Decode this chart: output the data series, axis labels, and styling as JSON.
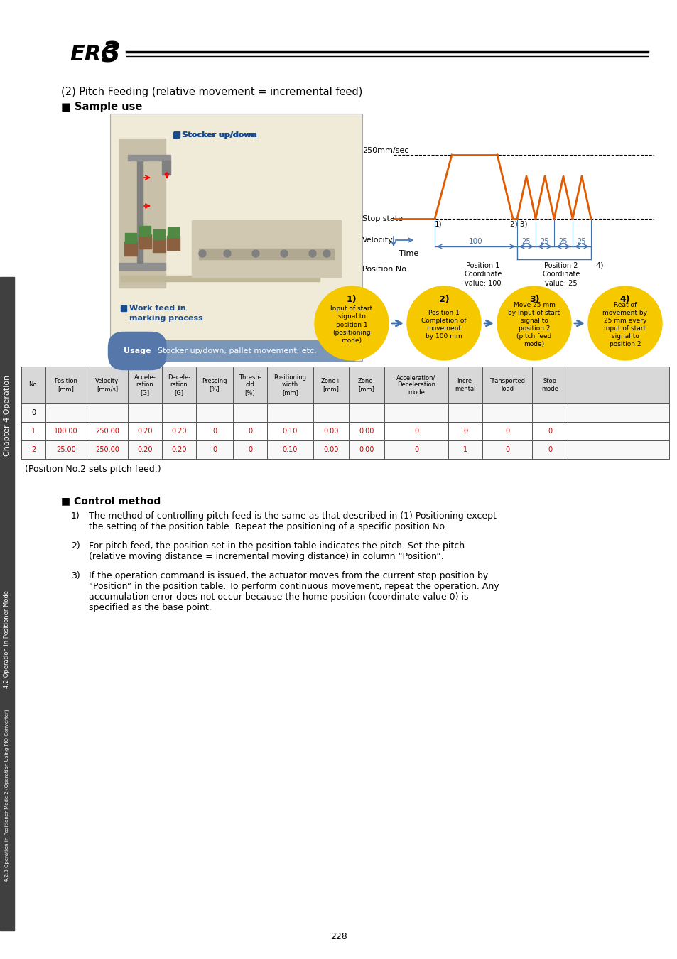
{
  "title_text": "(2) Pitch Feeding (relative movement = incremental feed)",
  "sample_use": "■ Sample use",
  "control_method": "■ Control method",
  "page_number": "228",
  "chapter_text": "Chapter 4 Operation",
  "sidebar_text1": "4.2 Operation in Positioner Mode",
  "sidebar_text2": "4.2.3 Operation in Positioner Mode 2 (Operation Using PIO Converter)",
  "usage_text": "Stocker up/down, pallet movement, etc.",
  "stocker_label": "■ Stocker up/down",
  "work_feed_label": "■ Work feed in\nmarking process",
  "velocity_label": "250mm/sec",
  "stop_state_label": "Stop state",
  "velocity_axis_label": "Velocity",
  "time_axis_label": "Time",
  "position_no_label": "Position No.",
  "pos1_coord": "Position 1\nCoordinate\nvalue: 100",
  "pos2_coord": "Position 2\nCoordinate\nvalue: 25",
  "circle_labels": [
    {
      "num": "1)",
      "text": "Input of start\nsignal to\nposition 1\n(positioning\nmode)"
    },
    {
      "num": "2)",
      "text": "Position 1\nCompletion of\nmovement\nby 100 mm"
    },
    {
      "num": "3)",
      "text": "Move 25 mm\nby input of start\nsignal to\nposition 2\n(pitch feed\nmode)"
    },
    {
      "num": "4)",
      "text": "Reat of\nmovement by\n25 mm every\ninput of start\nsignal to\nposition 2"
    }
  ],
  "table_headers": [
    "No.",
    "Position\n[mm]",
    "Velocity\n[mm/s]",
    "Accele-\nration\n[G]",
    "Decele-\nration\n[G]",
    "Pressing\n[%]",
    "Thresh-\nold\n[%]",
    "Positioning\nwidth\n[mm]",
    "Zone+\n[mm]",
    "Zone-\n[mm]",
    "Acceleration/\nDeceleration\nmode",
    "Incre-\nmental",
    "Transported\nload",
    "Stop\nmode"
  ],
  "table_row0": [
    "0",
    "",
    "",
    "",
    "",
    "",
    "",
    "",
    "",
    "",
    "",
    "",
    "",
    ""
  ],
  "table_row1": [
    "1",
    "100.00",
    "250.00",
    "0.20",
    "0.20",
    "0",
    "0",
    "0.10",
    "0.00",
    "0.00",
    "0",
    "0",
    "0",
    "0"
  ],
  "table_row2": [
    "2",
    "25.00",
    "250.00",
    "0.20",
    "0.20",
    "0",
    "0",
    "0.10",
    "0.00",
    "0.00",
    "0",
    "1",
    "0",
    "0"
  ],
  "position_note": "(Position No.2 sets pitch feed.)",
  "control_items": [
    "The method of controlling pitch feed is the same as that described in (1) Positioning except\nthe setting of the position table. Repeat the positioning of a specific position No.",
    "For pitch feed, the position set in the position table indicates the pitch. Set the pitch\n(relative moving distance = incremental moving distance) in column “Position”.",
    "If the operation command is issued, the actuator moves from the current stop position by\n“Position” in the position table. To perform continuous movement, repeat the operation. Any\naccumulation error does not occur because the home position (coordinate value 0) is\nspecified as the base point."
  ],
  "bg_color": "#ffffff",
  "table_header_bg": "#d8d8d8",
  "orange_color": "#e05a00",
  "yellow_color": "#f5c800",
  "blue_color": "#4070b0",
  "blue_label_color": "#1a4b8c",
  "usage_bg": "#7a96b8",
  "diagram_bg": "#f0ead8",
  "red_color": "#cc0000",
  "dark_gray": "#404040"
}
